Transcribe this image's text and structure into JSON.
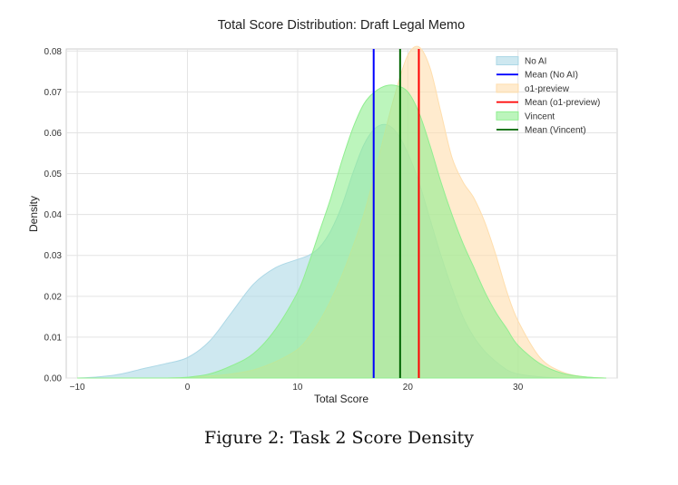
{
  "chart_data": {
    "type": "area",
    "title": "Total Score Distribution: Draft Legal Memo",
    "xlabel": "Total Score",
    "ylabel": "Density",
    "xlim": [
      -11,
      39
    ],
    "ylim": [
      0,
      0.0805
    ],
    "xticks": [
      -10,
      0,
      10,
      20,
      30
    ],
    "xtick_labels": [
      "−10",
      "0",
      "10",
      "20",
      "30"
    ],
    "yticks": [
      0,
      0.01,
      0.02,
      0.03,
      0.04,
      0.05,
      0.06,
      0.07,
      0.08
    ],
    "ytick_labels": [
      "0.00",
      "0.01",
      "0.02",
      "0.03",
      "0.04",
      "0.05",
      "0.06",
      "0.07",
      "0.08"
    ],
    "grid": true,
    "legend_position": "top-right",
    "x": [
      -10,
      -8,
      -6,
      -4,
      -2,
      0,
      2,
      4,
      6,
      8,
      10,
      11,
      12,
      13,
      14,
      15,
      16,
      17,
      18,
      19,
      20,
      21,
      22,
      23,
      24,
      25,
      26,
      27,
      28,
      29,
      30,
      32,
      34,
      36,
      38
    ],
    "series": [
      {
        "name": "No AI",
        "fill": "#add8e6",
        "values": [
          0,
          0.0003,
          0.001,
          0.0023,
          0.0035,
          0.005,
          0.009,
          0.016,
          0.023,
          0.027,
          0.029,
          0.03,
          0.032,
          0.036,
          0.042,
          0.05,
          0.057,
          0.061,
          0.062,
          0.06,
          0.055,
          0.048,
          0.039,
          0.03,
          0.022,
          0.015,
          0.01,
          0.0065,
          0.004,
          0.002,
          0.001,
          0.0003,
          0,
          0,
          0
        ]
      },
      {
        "name": "o1-preview",
        "fill": "#ffdead",
        "values": [
          0,
          0,
          0,
          0,
          0,
          0.0001,
          0.0005,
          0.001,
          0.002,
          0.004,
          0.007,
          0.01,
          0.014,
          0.019,
          0.025,
          0.032,
          0.04,
          0.05,
          0.061,
          0.071,
          0.079,
          0.081,
          0.076,
          0.065,
          0.054,
          0.048,
          0.044,
          0.038,
          0.03,
          0.021,
          0.014,
          0.005,
          0.0015,
          0.0003,
          0
        ]
      },
      {
        "name": "Vincent",
        "fill": "#90ee90",
        "values": [
          0,
          0,
          0,
          0,
          0,
          0.0002,
          0.001,
          0.003,
          0.006,
          0.012,
          0.021,
          0.028,
          0.036,
          0.044,
          0.053,
          0.061,
          0.067,
          0.07,
          0.0715,
          0.0715,
          0.07,
          0.065,
          0.057,
          0.048,
          0.04,
          0.033,
          0.027,
          0.021,
          0.016,
          0.012,
          0.008,
          0.0035,
          0.0012,
          0.0003,
          0
        ]
      }
    ],
    "means": [
      {
        "name": "Mean (No AI)",
        "x": 16.9,
        "color": "#0000ff"
      },
      {
        "name": "Mean (o1-preview)",
        "x": 21.0,
        "color": "#ff0000"
      },
      {
        "name": "Mean (Vincent)",
        "x": 19.3,
        "color": "#006400"
      }
    ]
  },
  "caption": "Figure 2: Task 2 Score Density"
}
